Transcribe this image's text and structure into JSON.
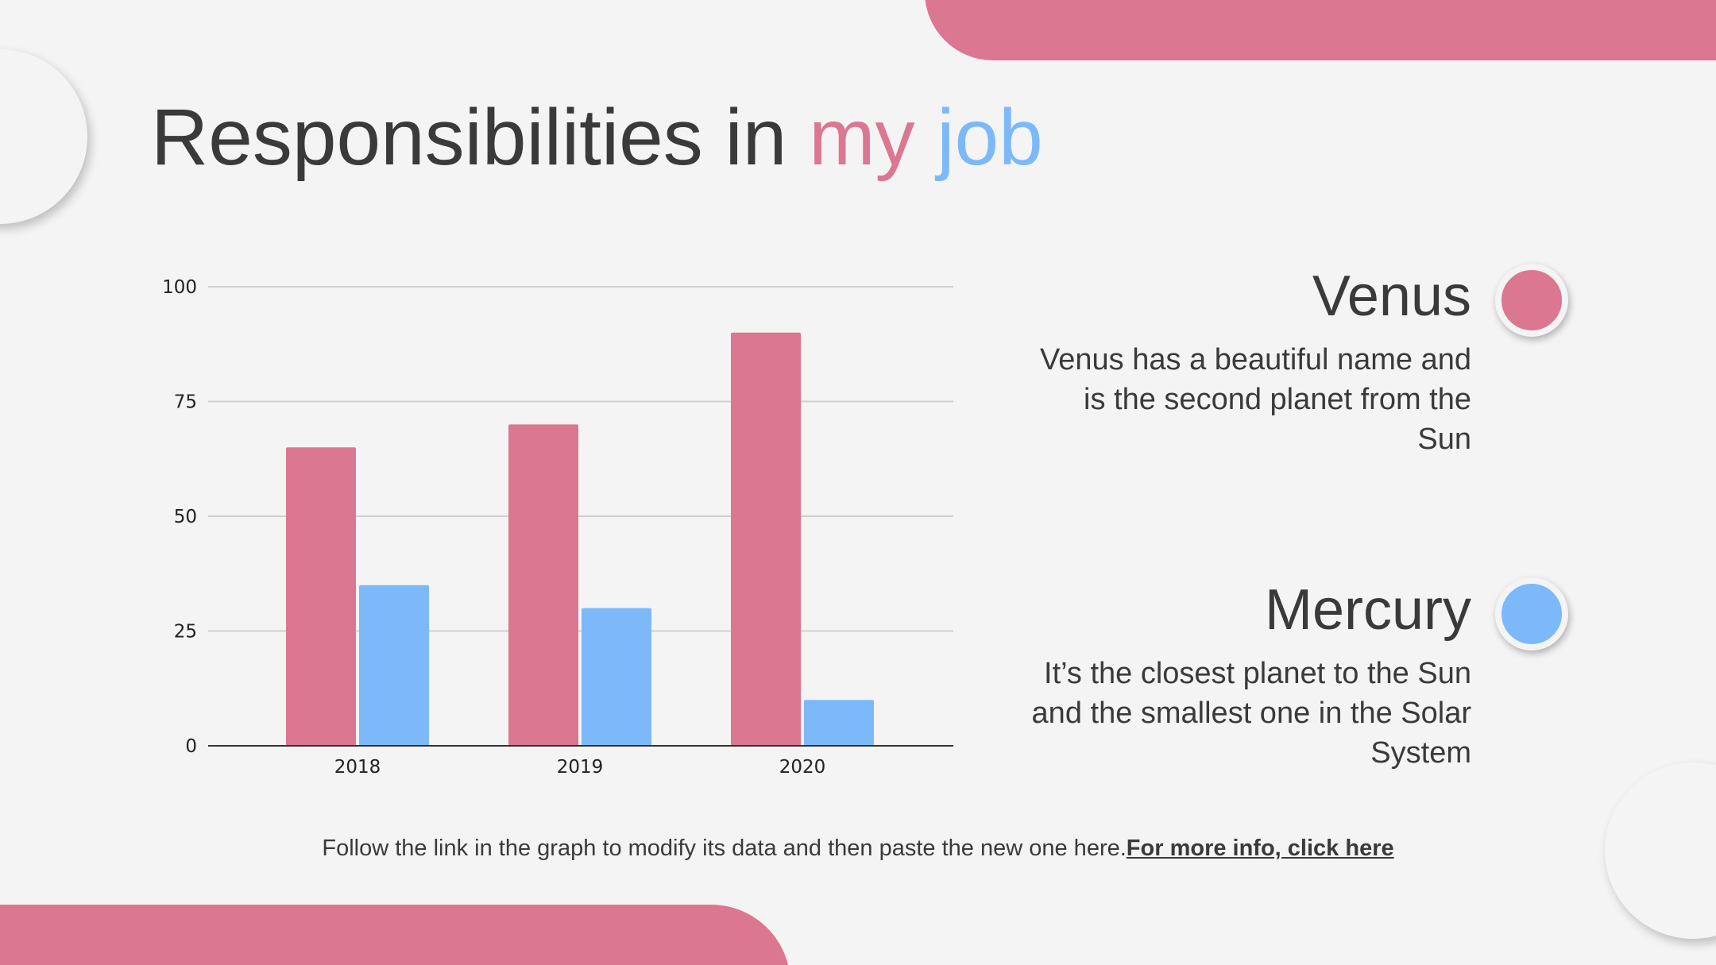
{
  "title": {
    "part1": "Responsibilities in ",
    "part2": "my",
    "part3": " job"
  },
  "colors": {
    "pink": "#db7791",
    "blue": "#7db9f9",
    "text": "#3a3a3a"
  },
  "legend": [
    {
      "name": "Venus",
      "desc": "Venus has a beautiful name and is the second planet from the Sun",
      "color": "#db7791"
    },
    {
      "name": "Mercury",
      "desc": "It’s the closest planet to the Sun and the smallest one in the Solar System",
      "color": "#7db9f9"
    }
  ],
  "footer": {
    "text": "Follow the link in the graph to modify its data and then paste the new one here.",
    "link": "For more info, click here"
  },
  "chart_data": {
    "type": "bar",
    "categories": [
      "2018",
      "2019",
      "2020"
    ],
    "series": [
      {
        "name": "Venus",
        "values": [
          65,
          70,
          90
        ],
        "color": "#db7791"
      },
      {
        "name": "Mercury",
        "values": [
          35,
          30,
          10
        ],
        "color": "#7db9f9"
      }
    ],
    "ylim": [
      0,
      100
    ],
    "yticks": [
      "0",
      "25",
      "50",
      "75",
      "100"
    ],
    "grid": true,
    "legend": "right"
  }
}
